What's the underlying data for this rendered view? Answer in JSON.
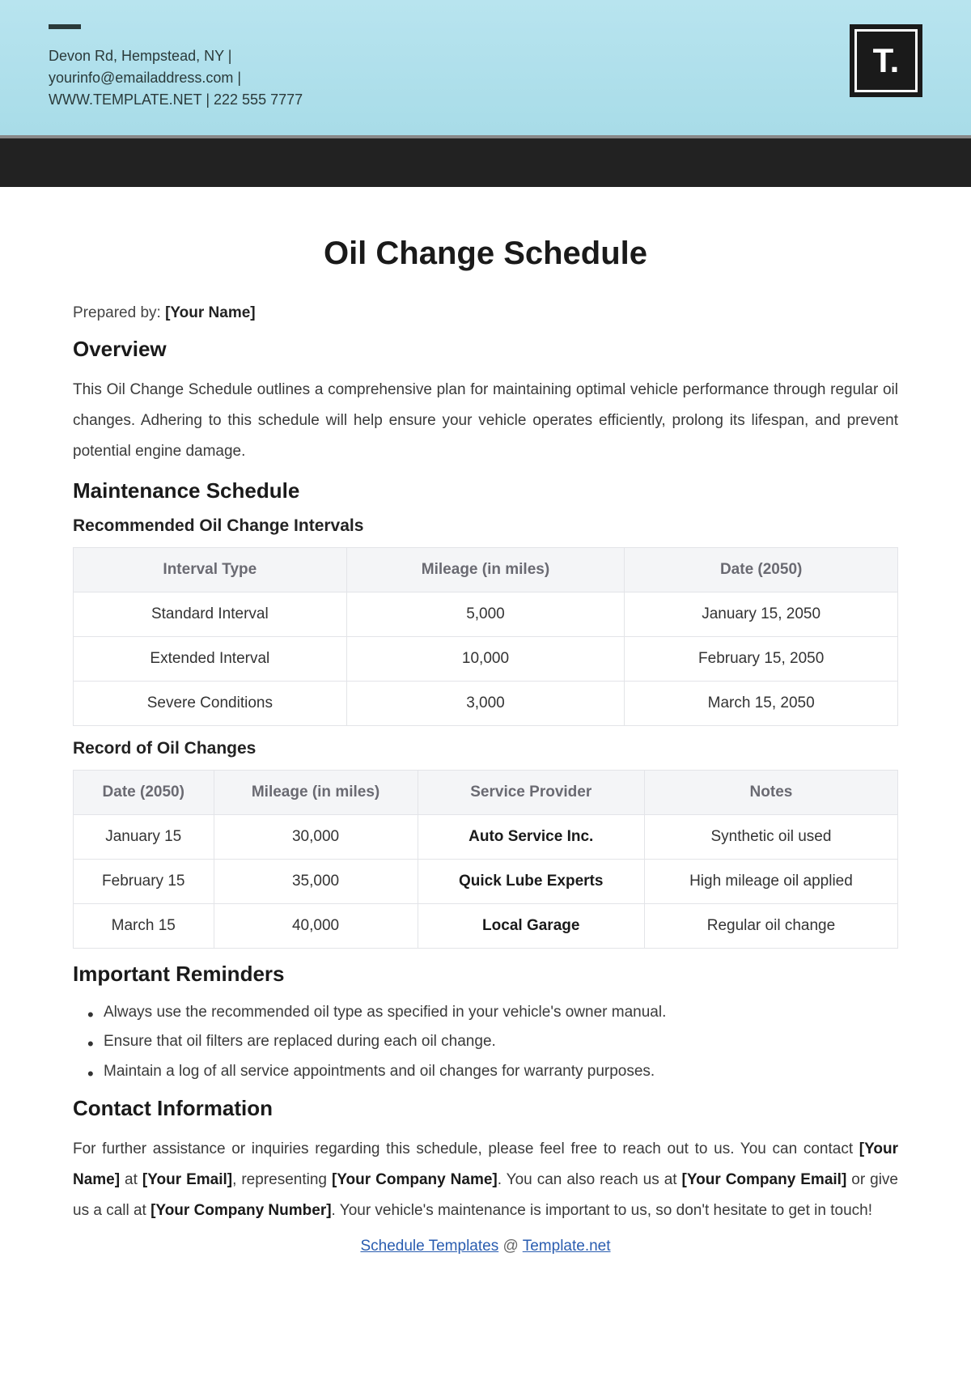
{
  "header": {
    "info_line1": "Devon Rd, Hempstead, NY |",
    "info_line2": "yourinfo@emailaddress.com |",
    "info_line3": "WWW.TEMPLATE.NET | 222 555 7777",
    "logo_text": "T."
  },
  "title": "Oil Change Schedule",
  "prepared_prefix": "Prepared by: ",
  "prepared_value": "[Your Name]",
  "overview": {
    "heading": "Overview",
    "text": "This Oil Change Schedule outlines a comprehensive plan for maintaining optimal vehicle performance through regular oil changes. Adhering to this schedule will help ensure your vehicle operates efficiently, prolong its lifespan, and prevent potential engine damage."
  },
  "maintenance": {
    "heading": "Maintenance Schedule",
    "intervals": {
      "heading": "Recommended Oil Change Intervals",
      "columns": [
        "Interval Type",
        "Mileage (in miles)",
        "Date (2050)"
      ],
      "rows": [
        [
          "Standard Interval",
          "5,000",
          "January 15, 2050"
        ],
        [
          "Extended Interval",
          "10,000",
          "February 15, 2050"
        ],
        [
          "Severe Conditions",
          "3,000",
          "March 15, 2050"
        ]
      ]
    },
    "record": {
      "heading": "Record of Oil Changes",
      "columns": [
        "Date (2050)",
        "Mileage (in miles)",
        "Service Provider",
        "Notes"
      ],
      "rows": [
        [
          "January 15",
          "30,000",
          "Auto Service Inc.",
          "Synthetic oil used"
        ],
        [
          "February 15",
          "35,000",
          "Quick Lube Experts",
          "High mileage oil applied"
        ],
        [
          "March 15",
          "40,000",
          "Local Garage",
          "Regular oil change"
        ]
      ],
      "bold_col": 2
    }
  },
  "reminders": {
    "heading": "Important Reminders",
    "items": [
      "Always use the recommended oil type as specified in your vehicle's owner manual.",
      "Ensure that oil filters are replaced during each oil change.",
      "Maintain a log of all service appointments and oil changes for warranty purposes."
    ]
  },
  "contact": {
    "heading": "Contact Information",
    "parts": [
      {
        "t": "For further assistance or inquiries regarding this schedule, please feel free to reach out to us. You can contact ",
        "b": false
      },
      {
        "t": "[Your Name]",
        "b": true
      },
      {
        "t": " at ",
        "b": false
      },
      {
        "t": "[Your Email]",
        "b": true
      },
      {
        "t": ", representing ",
        "b": false
      },
      {
        "t": "[Your Company Name]",
        "b": true
      },
      {
        "t": ". You can also reach us at ",
        "b": false
      },
      {
        "t": "[Your Company Email]",
        "b": true
      },
      {
        "t": " or give us a call at ",
        "b": false
      },
      {
        "t": "[Your Company Number]",
        "b": true
      },
      {
        "t": ". Your vehicle's maintenance is important to us, so don't hesitate to get in touch!",
        "b": false
      }
    ]
  },
  "footer": {
    "link1": "Schedule Templates",
    "sep": " @ ",
    "link2": "Template.net"
  },
  "colors": {
    "banner_top": "#b8e4ef",
    "banner_bottom": "#a8dce8",
    "dark_bar": "#222222",
    "table_header_bg": "#f4f5f7",
    "table_border": "#e3e4e8",
    "link": "#2a5db0"
  }
}
